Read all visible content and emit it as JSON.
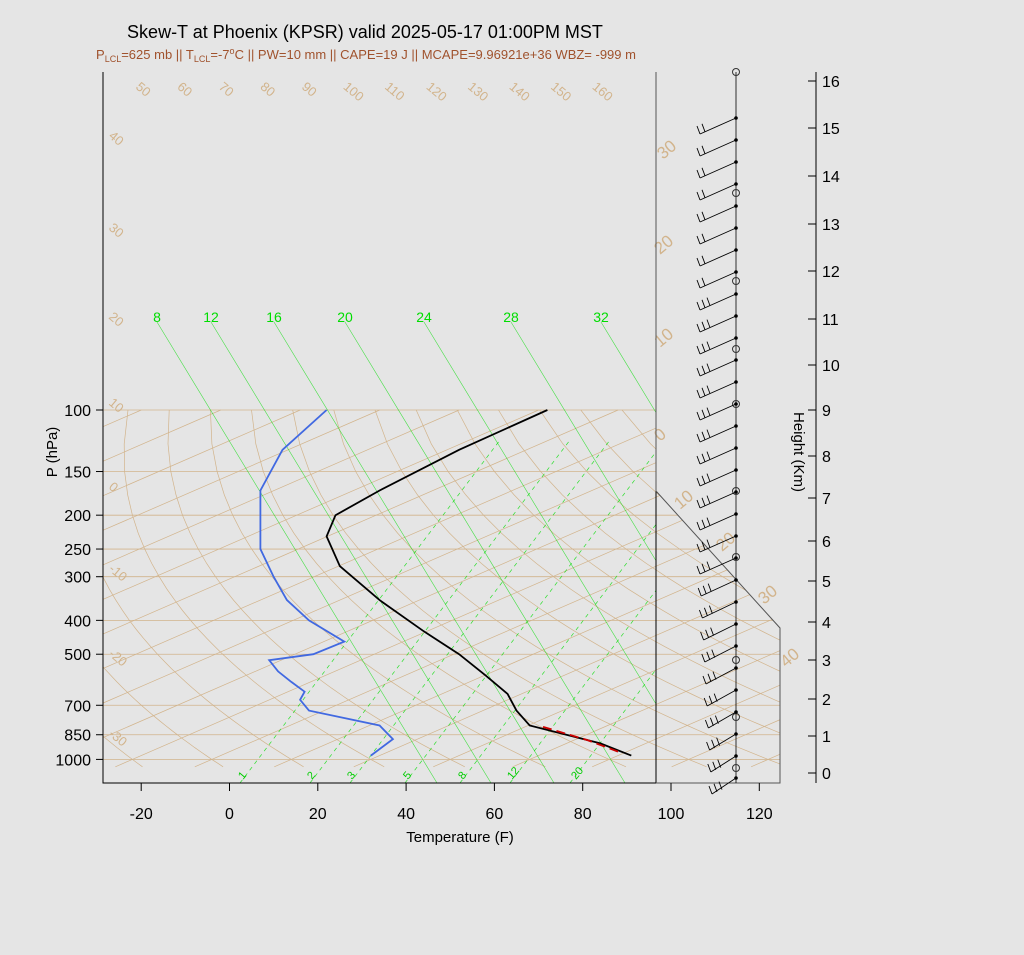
{
  "title": "Skew-T at Phoenix (KPSR) valid 2025-05-17 01:00PM MST",
  "subtitle": {
    "p_lcl_main": "P",
    "p_lcl_sub": "LCL",
    "p_lcl_val": "=625 mb || ",
    "t_lcl_main": "T",
    "t_lcl_sub": "LCL",
    "t_lcl_val": "=-7",
    "deg": "o",
    "rest": "C || PW=10 mm || CAPE=19 J || MCAPE=9.96921e+36 WBZ= -999 m"
  },
  "colors": {
    "temperature": "#000000",
    "dewpoint": "#4169e1",
    "parcel": "#cc0000",
    "mixing_ratio": "#00dd00",
    "overlay": "#d2b48c"
  },
  "chart_data": {
    "type": "line",
    "xlabel": "Temperature (F)",
    "ylabel": "P (hPa)",
    "y2label": "Height (Km)",
    "xlim": [
      -25,
      125
    ],
    "ylim": [
      1050,
      100
    ],
    "y_scale": "log",
    "x_ticks": [
      "-20",
      "0",
      "20",
      "40",
      "60",
      "80",
      "100",
      "120"
    ],
    "y_ticks": [
      "100",
      "150",
      "200",
      "250",
      "300",
      "400",
      "500",
      "700",
      "850",
      "1000"
    ],
    "height_ticks": [
      "0",
      "1",
      "2",
      "3",
      "4",
      "5",
      "6",
      "7",
      "8",
      "9",
      "10",
      "11",
      "12",
      "13",
      "14",
      "15",
      "16"
    ],
    "mixing_ratio_labels_top": [
      "8",
      "12",
      "16",
      "20",
      "24",
      "28",
      "32"
    ],
    "mixing_ratio_labels_bottom": [
      "1",
      "2",
      "3",
      "5",
      "8",
      "12",
      "20"
    ],
    "isotherm_labels_top": [
      "50",
      "60",
      "70",
      "80",
      "90",
      "100",
      "110",
      "120",
      "130",
      "140",
      "150",
      "160"
    ],
    "isotherm_labels_left": [
      "40",
      "30",
      "20",
      "10",
      "0",
      "-10",
      "-20",
      "-30"
    ],
    "overlay_labels_right": [
      "30",
      "20",
      "10",
      "0",
      "10",
      "20",
      "30",
      "40"
    ],
    "series": [
      {
        "key": "temperature",
        "points": [
          [
            91,
            975
          ],
          [
            84,
            900
          ],
          [
            68,
            800
          ],
          [
            65,
            725
          ],
          [
            63,
            650
          ],
          [
            58,
            575
          ],
          [
            52,
            500
          ],
          [
            44,
            430
          ],
          [
            34,
            350
          ],
          [
            25,
            280
          ],
          [
            22,
            230
          ],
          [
            24,
            200
          ],
          [
            34,
            170
          ],
          [
            52,
            130
          ],
          [
            72,
            100
          ]
        ]
      },
      {
        "key": "dewpoint",
        "points": [
          [
            32,
            975
          ],
          [
            37,
            875
          ],
          [
            34,
            800
          ],
          [
            18,
            725
          ],
          [
            16,
            675
          ],
          [
            17,
            640
          ],
          [
            14,
            600
          ],
          [
            11,
            560
          ],
          [
            9,
            520
          ],
          [
            19,
            500
          ],
          [
            26,
            460
          ],
          [
            18,
            400
          ],
          [
            13,
            350
          ],
          [
            10,
            300
          ],
          [
            7,
            250
          ],
          [
            7,
            200
          ],
          [
            7,
            170
          ],
          [
            12,
            130
          ],
          [
            22,
            100
          ]
        ]
      },
      {
        "key": "parcel",
        "points": [
          [
            88,
            950
          ],
          [
            81,
            880
          ],
          [
            70,
            800
          ]
        ]
      }
    ],
    "wind_rows": 31
  }
}
